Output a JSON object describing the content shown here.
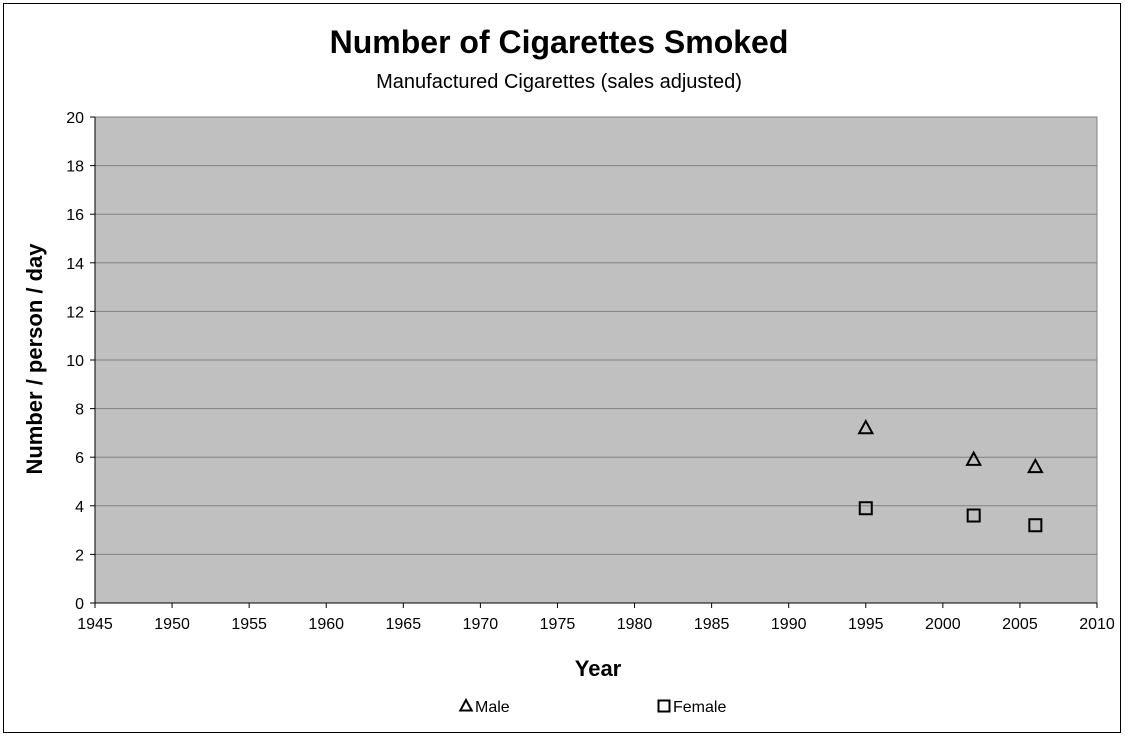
{
  "chart_data": {
    "type": "scatter",
    "title": "Number of Cigarettes Smoked",
    "subtitle": "Manufactured Cigarettes (sales adjusted)",
    "xlabel": "Year",
    "ylabel": "Number / person / day",
    "xlim": [
      1945,
      2010
    ],
    "ylim": [
      0,
      20
    ],
    "x_ticks": [
      1945,
      1950,
      1955,
      1960,
      1965,
      1970,
      1975,
      1980,
      1985,
      1990,
      1995,
      2000,
      2005,
      2010
    ],
    "y_ticks": [
      0,
      2,
      4,
      6,
      8,
      10,
      12,
      14,
      16,
      18,
      20
    ],
    "grid": "horizontal",
    "plot_background": "#c0c0c0",
    "gridline_color": "#808080",
    "legend_position": "bottom",
    "series": [
      {
        "name": "Male",
        "marker": "triangle",
        "x": [
          1995,
          2002,
          2006
        ],
        "y": [
          7.2,
          5.9,
          5.6
        ]
      },
      {
        "name": "Female",
        "marker": "square",
        "x": [
          1995,
          2002,
          2006
        ],
        "y": [
          3.9,
          3.6,
          3.2
        ]
      }
    ]
  }
}
